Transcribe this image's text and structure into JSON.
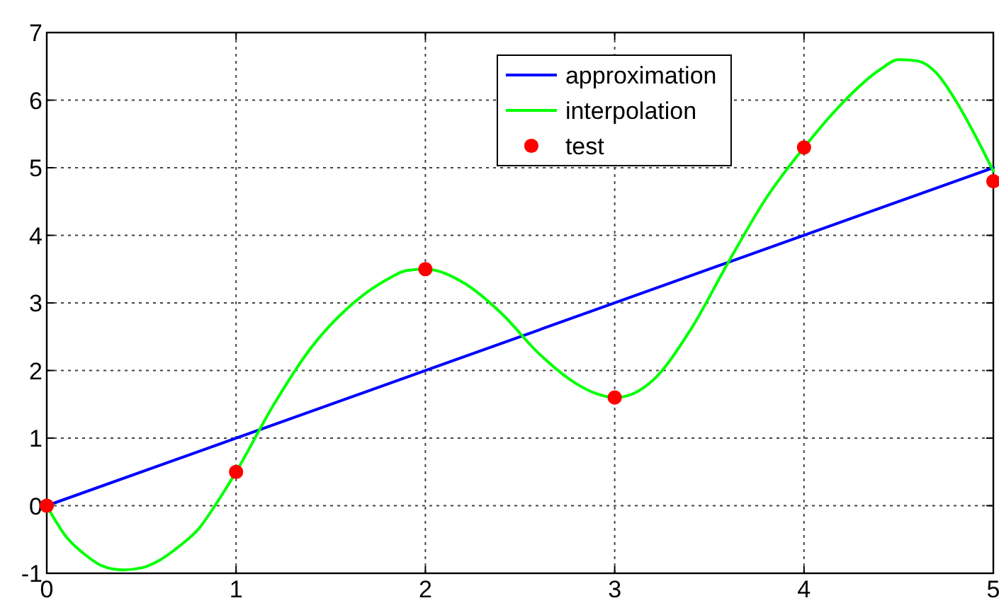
{
  "chart_data": {
    "type": "line",
    "xlim": [
      0,
      5
    ],
    "ylim": [
      -1,
      7
    ],
    "xticks": [
      0,
      1,
      2,
      3,
      4,
      5
    ],
    "yticks": [
      -1,
      0,
      1,
      2,
      3,
      4,
      5,
      6,
      7
    ],
    "grid": true,
    "legend": "top",
    "marker": "none",
    "series": [
      {
        "name": "approximation",
        "color": "#0000ff",
        "x": [
          0,
          5
        ],
        "values": [
          0,
          5
        ]
      },
      {
        "name": "interpolation",
        "color": "#00ff00",
        "x": [
          0,
          0.1,
          0.2,
          0.3,
          0.4,
          0.5,
          0.6,
          0.7,
          0.8,
          0.9,
          1,
          1.2,
          1.4,
          1.6,
          1.8,
          1.9,
          2,
          2.2,
          2.4,
          2.6,
          2.8,
          2.9,
          3,
          3.1,
          3.2,
          3.4,
          3.6,
          3.8,
          4,
          4.2,
          4.4,
          4.5,
          4.6,
          4.7,
          4.8,
          4.9,
          5
        ],
        "values": [
          0,
          -0.45,
          -0.72,
          -0.9,
          -0.95,
          -0.92,
          -0.8,
          -0.6,
          -0.35,
          0.05,
          0.5,
          1.5,
          2.35,
          2.95,
          3.35,
          3.48,
          3.5,
          3.3,
          2.85,
          2.25,
          1.8,
          1.66,
          1.6,
          1.66,
          1.85,
          2.6,
          3.6,
          4.55,
          5.3,
          5.95,
          6.45,
          6.6,
          6.58,
          6.4,
          6.0,
          5.5,
          4.95
        ]
      },
      {
        "name": "test",
        "type": "scatter",
        "marker": "circle",
        "color": "#ff0000",
        "x": [
          0,
          1,
          2,
          3,
          4,
          5
        ],
        "values": [
          0,
          0.5,
          3.5,
          1.6,
          5.3,
          4.8
        ]
      }
    ]
  }
}
